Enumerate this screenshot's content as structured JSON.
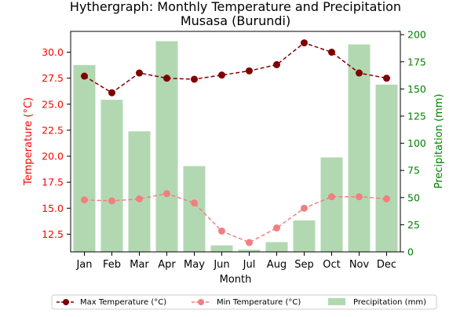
{
  "chart_data": {
    "type": "bar+line",
    "title": "Hythergraph: Monthly Temperature and Precipitation",
    "subtitle": "Musasa (Burundi)",
    "xlabel": "Month",
    "ylabel_left": "Temperature (°C)",
    "ylabel_right": "Precipitation (mm)",
    "categories": [
      "Jan",
      "Feb",
      "Mar",
      "Apr",
      "May",
      "Jun",
      "Jul",
      "Aug",
      "Sep",
      "Oct",
      "Nov",
      "Dec"
    ],
    "ylim_left": [
      10.8,
      32.0
    ],
    "ylim_right": [
      0,
      203
    ],
    "yticks_left": [
      "12.5",
      "15.0",
      "17.5",
      "20.0",
      "22.5",
      "25.0",
      "27.5",
      "30.0"
    ],
    "yticks_right": [
      "0",
      "25",
      "50",
      "75",
      "100",
      "125",
      "150",
      "175",
      "200"
    ],
    "series": [
      {
        "name": "Max Temperature (°C)",
        "axis": "left",
        "kind": "line",
        "style": "dashed",
        "values": [
          27.7,
          26.1,
          28.0,
          27.5,
          27.4,
          27.8,
          28.2,
          28.8,
          30.9,
          30.0,
          28.0,
          27.5
        ]
      },
      {
        "name": "Min Temperature (°C)",
        "axis": "left",
        "kind": "line",
        "style": "dashed",
        "values": [
          15.8,
          15.7,
          15.9,
          16.4,
          15.5,
          12.8,
          11.7,
          13.1,
          15.0,
          16.1,
          16.1,
          15.9
        ]
      },
      {
        "name": "Precipitation (mm)",
        "axis": "right",
        "kind": "bar",
        "values": [
          172,
          140,
          111,
          194,
          79,
          6,
          2,
          9,
          29,
          87,
          191,
          154
        ]
      }
    ],
    "legend_position": "bottom-center",
    "grid": false
  },
  "colors": {
    "max_temp": "#800000",
    "min_temp": "#f08080",
    "precip": "#b2d8b2",
    "left_axis_text": "#ff0000",
    "right_axis_text": "#008000"
  }
}
